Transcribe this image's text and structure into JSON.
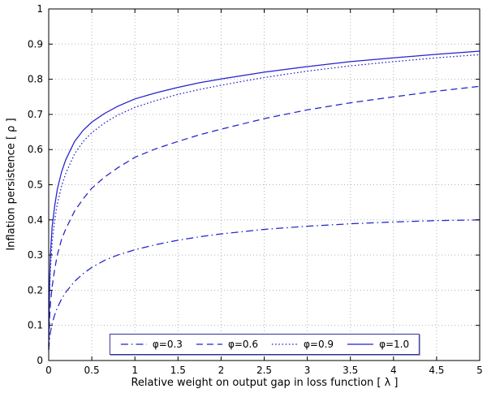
{
  "chart_data": {
    "type": "line",
    "title": "",
    "xlabel": "Relative weight on output gap in loss function [ λ ]",
    "ylabel": "Inflation persistence [ ρ ]",
    "xlim": [
      0,
      5
    ],
    "ylim": [
      0,
      1
    ],
    "xticks": [
      0,
      0.5,
      1,
      1.5,
      2,
      2.5,
      3,
      3.5,
      4,
      4.5,
      5
    ],
    "yticks": [
      0,
      0.1,
      0.2,
      0.3,
      0.4,
      0.5,
      0.6,
      0.7,
      0.8,
      0.9,
      1
    ],
    "grid": true,
    "grid_style": "dotted",
    "grid_color": "#b3b3b3",
    "line_color": "#2222cc",
    "axis_color": "#000000",
    "legend_position": "bottom-center-inside",
    "x": [
      0,
      0.01,
      0.02,
      0.04,
      0.07,
      0.1,
      0.15,
      0.2,
      0.3,
      0.4,
      0.5,
      0.65,
      0.8,
      1.0,
      1.25,
      1.5,
      1.75,
      2.0,
      2.5,
      3.0,
      3.5,
      4.0,
      4.5,
      5.0
    ],
    "series": [
      {
        "name": "φ=0.3",
        "style": "dash-dot",
        "values": [
          0.03,
          0.06,
          0.08,
          0.105,
          0.13,
          0.15,
          0.175,
          0.195,
          0.225,
          0.247,
          0.265,
          0.285,
          0.3,
          0.315,
          0.33,
          0.342,
          0.352,
          0.36,
          0.373,
          0.382,
          0.389,
          0.394,
          0.398,
          0.4
        ]
      },
      {
        "name": "φ=0.6",
        "style": "dashed",
        "values": [
          0.03,
          0.12,
          0.16,
          0.21,
          0.26,
          0.3,
          0.345,
          0.375,
          0.425,
          0.46,
          0.49,
          0.522,
          0.548,
          0.578,
          0.603,
          0.623,
          0.642,
          0.658,
          0.688,
          0.713,
          0.733,
          0.75,
          0.766,
          0.78
        ]
      },
      {
        "name": "φ=0.9",
        "style": "dotted",
        "values": [
          0.04,
          0.19,
          0.26,
          0.335,
          0.4,
          0.445,
          0.497,
          0.533,
          0.588,
          0.623,
          0.648,
          0.676,
          0.698,
          0.72,
          0.74,
          0.757,
          0.771,
          0.783,
          0.805,
          0.823,
          0.838,
          0.85,
          0.861,
          0.87
        ]
      },
      {
        "name": "φ=1.0",
        "style": "solid",
        "values": [
          0.04,
          0.22,
          0.3,
          0.38,
          0.44,
          0.487,
          0.537,
          0.572,
          0.623,
          0.655,
          0.678,
          0.703,
          0.723,
          0.744,
          0.762,
          0.777,
          0.79,
          0.801,
          0.82,
          0.836,
          0.85,
          0.861,
          0.871,
          0.88
        ]
      }
    ]
  }
}
